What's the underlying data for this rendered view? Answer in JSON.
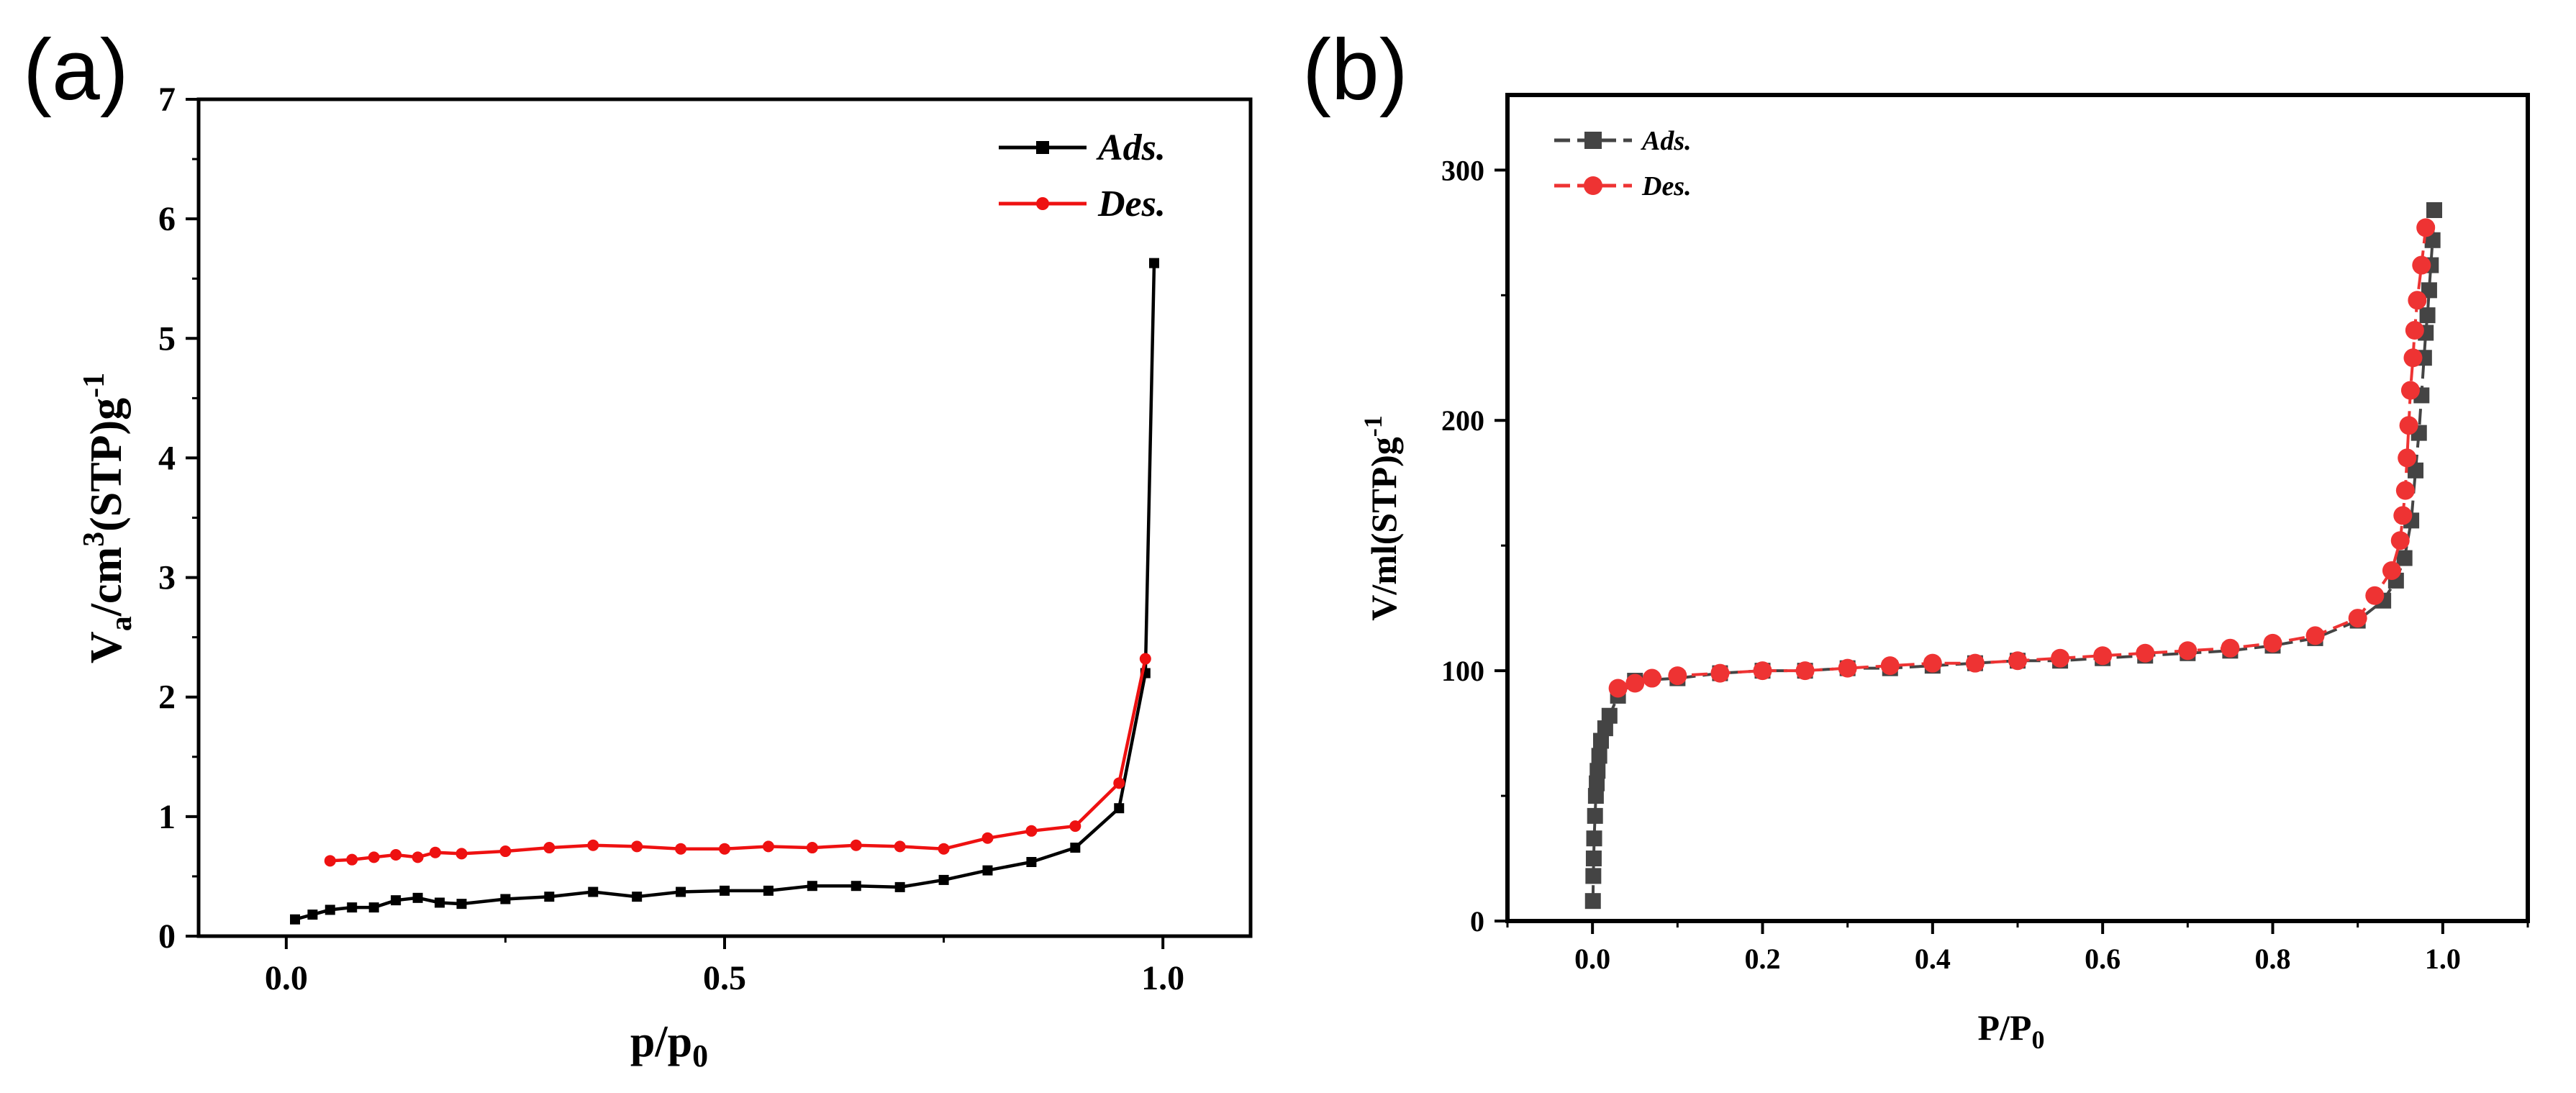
{
  "chart_data": [
    {
      "panel": "(a)",
      "type": "line",
      "xlabel_main": "p/p",
      "xlabel_sub": "0",
      "ylabel_parts": [
        "V",
        "a",
        "/cm",
        "3",
        "(STP)g",
        "-1"
      ],
      "xlim": [
        -0.1,
        1.1
      ],
      "ylim": [
        0,
        7
      ],
      "xticks": [
        "0.0",
        "0.5",
        "1.0"
      ],
      "yticks": [
        "0",
        "1",
        "2",
        "3",
        "4",
        "5",
        "6",
        "7"
      ],
      "legend_position": "top-right",
      "series": [
        {
          "name": "Ads.",
          "color": "#000000",
          "marker": "square",
          "x": [
            0.01,
            0.03,
            0.05,
            0.075,
            0.1,
            0.125,
            0.15,
            0.175,
            0.2,
            0.25,
            0.3,
            0.35,
            0.4,
            0.45,
            0.5,
            0.55,
            0.6,
            0.65,
            0.7,
            0.75,
            0.8,
            0.85,
            0.9,
            0.95,
            0.98,
            0.99
          ],
          "y": [
            0.14,
            0.18,
            0.22,
            0.24,
            0.24,
            0.3,
            0.32,
            0.28,
            0.27,
            0.31,
            0.33,
            0.37,
            0.33,
            0.37,
            0.38,
            0.38,
            0.42,
            0.42,
            0.41,
            0.47,
            0.55,
            0.62,
            0.74,
            1.07,
            2.2,
            5.63
          ]
        },
        {
          "name": "Des.",
          "color": "#ee1111",
          "marker": "circle",
          "x": [
            0.98,
            0.95,
            0.9,
            0.85,
            0.8,
            0.75,
            0.7,
            0.65,
            0.6,
            0.55,
            0.5,
            0.45,
            0.4,
            0.35,
            0.3,
            0.25,
            0.2,
            0.17,
            0.15,
            0.125,
            0.1,
            0.075,
            0.05
          ],
          "y": [
            2.32,
            1.28,
            0.92,
            0.88,
            0.82,
            0.73,
            0.75,
            0.76,
            0.74,
            0.75,
            0.73,
            0.73,
            0.75,
            0.76,
            0.74,
            0.71,
            0.69,
            0.7,
            0.66,
            0.68,
            0.66,
            0.64,
            0.63
          ]
        }
      ]
    },
    {
      "panel": "(b)",
      "type": "line",
      "xlabel_main": "P/P",
      "xlabel_sub": "0",
      "ylabel": "V/ml(STP)g",
      "ylabel_sup": "-1",
      "xlim": [
        -0.1,
        1.1
      ],
      "ylim": [
        0,
        330
      ],
      "xticks": [
        "0.0",
        "0.2",
        "0.4",
        "0.6",
        "0.8",
        "1.0"
      ],
      "yticks": [
        "0",
        "100",
        "200",
        "300"
      ],
      "legend_position": "top-left",
      "series": [
        {
          "name": "Ads.",
          "color": "#444444",
          "marker": "square",
          "x": [
            0.0005,
            0.001,
            0.0015,
            0.002,
            0.003,
            0.004,
            0.005,
            0.006,
            0.008,
            0.01,
            0.015,
            0.02,
            0.03,
            0.05,
            0.1,
            0.15,
            0.2,
            0.25,
            0.3,
            0.35,
            0.4,
            0.45,
            0.5,
            0.55,
            0.6,
            0.65,
            0.7,
            0.75,
            0.8,
            0.85,
            0.9,
            0.93,
            0.945,
            0.955,
            0.963,
            0.968,
            0.972,
            0.975,
            0.978,
            0.98,
            0.982,
            0.984,
            0.986,
            0.988,
            0.99
          ],
          "y": [
            8,
            18,
            25,
            33,
            42,
            50,
            55,
            60,
            66,
            72,
            77,
            82,
            90,
            96,
            97,
            99,
            100,
            100,
            101,
            101,
            102,
            103,
            104,
            104,
            105,
            106,
            107,
            108,
            110,
            113,
            120,
            128,
            136,
            145,
            160,
            180,
            195,
            210,
            225,
            235,
            242,
            252,
            262,
            272,
            284
          ]
        },
        {
          "name": "Des.",
          "color": "#ee3333",
          "marker": "circle",
          "x": [
            0.98,
            0.975,
            0.97,
            0.967,
            0.965,
            0.962,
            0.96,
            0.958,
            0.956,
            0.953,
            0.95,
            0.94,
            0.92,
            0.9,
            0.85,
            0.8,
            0.75,
            0.7,
            0.65,
            0.6,
            0.55,
            0.5,
            0.45,
            0.4,
            0.35,
            0.3,
            0.25,
            0.2,
            0.15,
            0.1,
            0.07,
            0.05,
            0.03
          ],
          "y": [
            277,
            262,
            248,
            236,
            225,
            212,
            198,
            185,
            172,
            162,
            152,
            140,
            130,
            121,
            114,
            111,
            109,
            108,
            107,
            106,
            105,
            104,
            103,
            103,
            102,
            101,
            100,
            100,
            99,
            98,
            97,
            95,
            93
          ]
        }
      ]
    }
  ]
}
